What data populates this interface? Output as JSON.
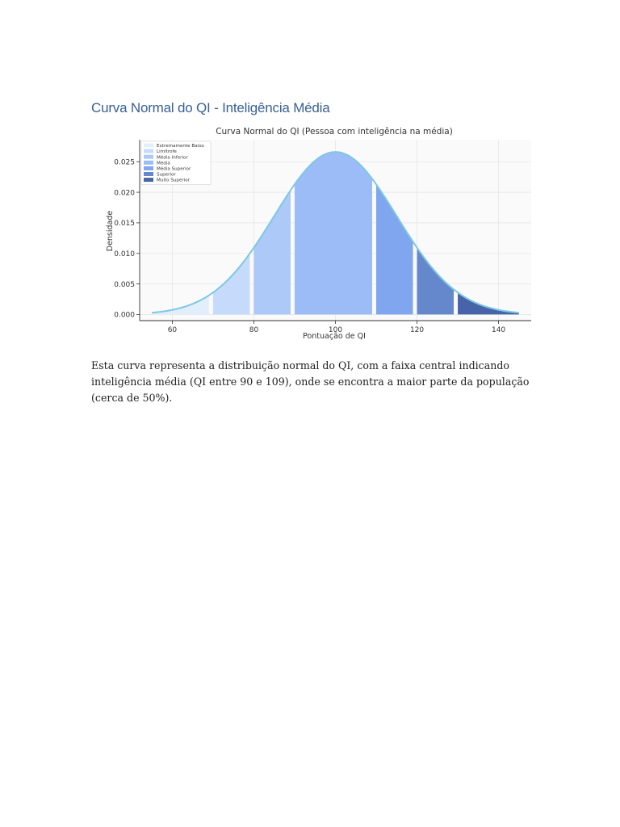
{
  "document": {
    "heading": "Curva Normal do QI - Inteligência Média",
    "paragraph": "Esta curva representa a distribuição normal do QI, com a faixa central indicando inteligência média (QI entre 90 e 109), onde se encontra a maior parte da população (cerca de 50%)."
  },
  "chart_data": {
    "type": "area",
    "title": "Curva Normal do QI (Pessoa com inteligência na média)",
    "xlabel": "Pontuação de QI",
    "ylabel": "Densidade",
    "distribution": {
      "mean": 100,
      "std": 15
    },
    "xlim": [
      52,
      148
    ],
    "ylim": [
      -0.001,
      0.0286
    ],
    "x_domain": [
      55,
      145
    ],
    "x_ticks": [
      60,
      80,
      100,
      120,
      140
    ],
    "y_ticks": [
      0.0,
      0.005,
      0.01,
      0.015,
      0.02,
      0.025
    ],
    "y_tick_labels": [
      "0.000",
      "0.005",
      "0.010",
      "0.015",
      "0.020",
      "0.025"
    ],
    "grid": true,
    "legend_position": "top-left",
    "curve_color": "#7ec8e3",
    "series": [
      {
        "name": "Extremamente Baixo",
        "x_range": [
          55,
          69
        ],
        "color": "#e3eefc"
      },
      {
        "name": "Limítrofe",
        "x_range": [
          70,
          79
        ],
        "color": "#c6dbfb"
      },
      {
        "name": "Média Inferior",
        "x_range": [
          80,
          89
        ],
        "color": "#adc9f7"
      },
      {
        "name": "Média",
        "x_range": [
          90,
          109
        ],
        "color": "#9bbcf7"
      },
      {
        "name": "Média Superior",
        "x_range": [
          110,
          119
        ],
        "color": "#7fa6ef"
      },
      {
        "name": "Superior",
        "x_range": [
          120,
          129
        ],
        "color": "#6587cc"
      },
      {
        "name": "Muito Superior",
        "x_range": [
          130,
          145
        ],
        "color": "#4763a9"
      }
    ]
  }
}
